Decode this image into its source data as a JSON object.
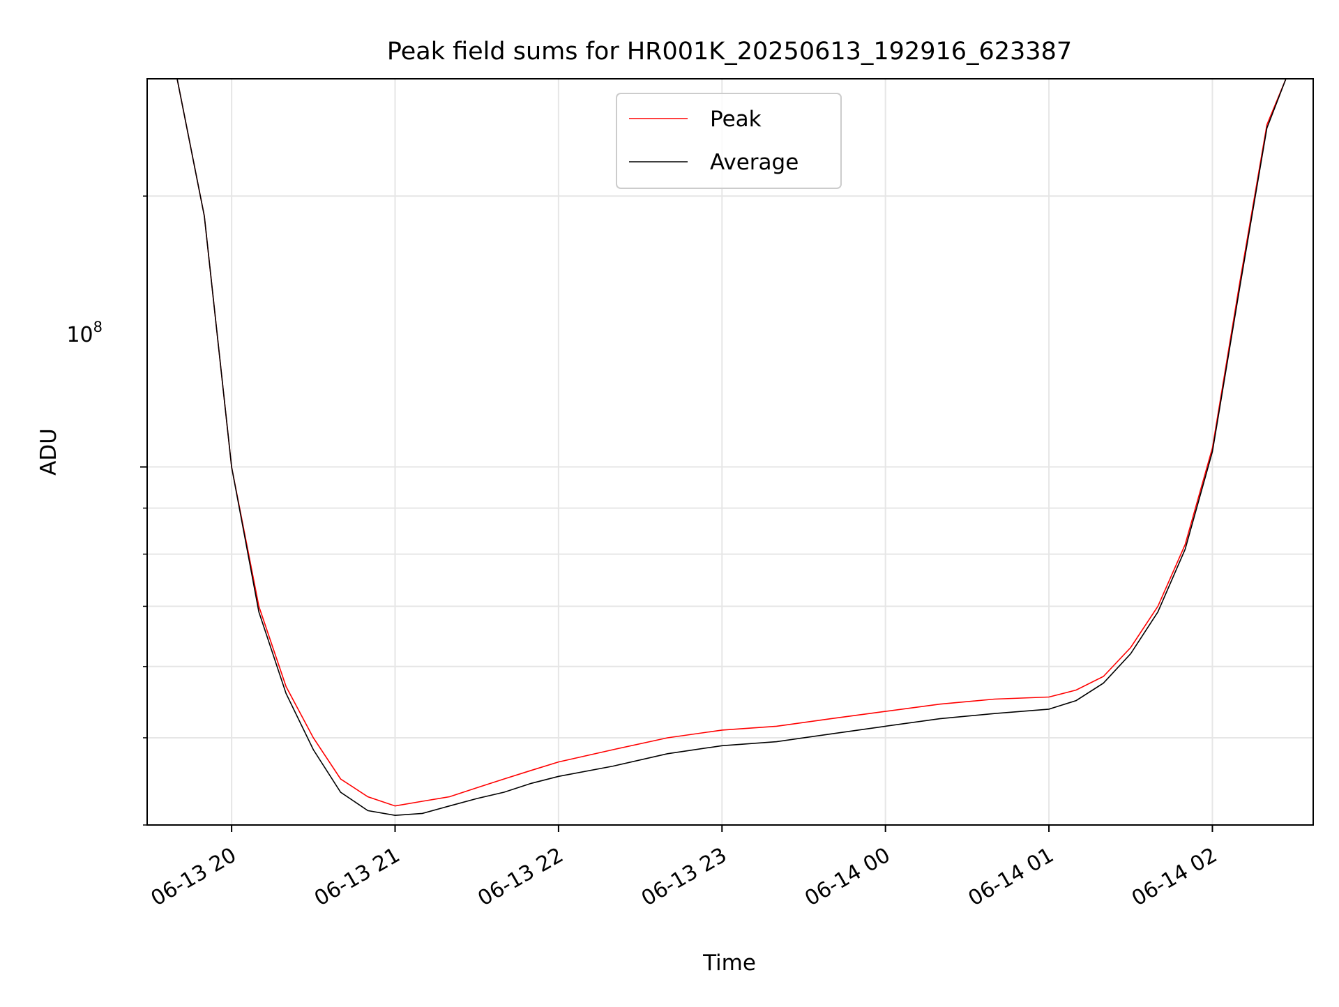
{
  "chart_data": {
    "type": "line",
    "title": "Peak field sums for HR001K_20250613_192916_623387",
    "xlabel": "Time",
    "ylabel": "ADU",
    "y_scale": "log",
    "y_tick_label": "10^8",
    "y_tick_label_base": "10",
    "y_tick_label_exp": "8",
    "ylim": [
      40000000,
      270000000
    ],
    "xlim": [
      "2025-06-13 19:29",
      "2025-06-14 02:37"
    ],
    "x_tick_labels": [
      "06-13 20",
      "06-13 21",
      "06-13 22",
      "06-13 23",
      "06-14 00",
      "06-14 01",
      "06-14 02"
    ],
    "x_ticks": [
      "2025-06-13 20:00",
      "2025-06-13 21:00",
      "2025-06-13 22:00",
      "2025-06-13 23:00",
      "2025-06-14 00:00",
      "2025-06-14 01:00",
      "2025-06-14 02:00"
    ],
    "grid": true,
    "legend_position": "upper center",
    "series": [
      {
        "name": "Peak",
        "color": "#ff0000",
        "x": [
          "2025-06-13 19:29",
          "2025-06-13 19:40",
          "2025-06-13 19:50",
          "2025-06-13 20:00",
          "2025-06-13 20:10",
          "2025-06-13 20:20",
          "2025-06-13 20:30",
          "2025-06-13 20:40",
          "2025-06-13 20:50",
          "2025-06-13 21:00",
          "2025-06-13 21:10",
          "2025-06-13 21:20",
          "2025-06-13 21:30",
          "2025-06-13 21:40",
          "2025-06-13 21:50",
          "2025-06-13 22:00",
          "2025-06-13 22:20",
          "2025-06-13 22:40",
          "2025-06-13 23:00",
          "2025-06-13 23:20",
          "2025-06-13 23:40",
          "2025-06-14 00:00",
          "2025-06-14 00:20",
          "2025-06-14 00:40",
          "2025-06-14 01:00",
          "2025-06-14 01:10",
          "2025-06-14 01:20",
          "2025-06-14 01:30",
          "2025-06-14 01:40",
          "2025-06-14 01:50",
          "2025-06-14 02:00",
          "2025-06-14 02:10",
          "2025-06-14 02:20",
          "2025-06-14 02:27"
        ],
        "y": [
          270000000,
          270000000,
          190000000,
          100000000,
          70000000,
          57000000,
          50000000,
          45000000,
          43000000,
          42000000,
          42500000,
          43000000,
          44000000,
          45000000,
          46000000,
          47000000,
          48500000,
          50000000,
          51000000,
          51500000,
          52500000,
          53500000,
          54500000,
          55200000,
          55500000,
          56500000,
          58500000,
          63000000,
          70000000,
          82000000,
          105000000,
          160000000,
          240000000,
          270000000
        ]
      },
      {
        "name": "Average",
        "color": "#000000",
        "x": [
          "2025-06-13 19:29",
          "2025-06-13 19:40",
          "2025-06-13 19:50",
          "2025-06-13 20:00",
          "2025-06-13 20:10",
          "2025-06-13 20:20",
          "2025-06-13 20:30",
          "2025-06-13 20:40",
          "2025-06-13 20:50",
          "2025-06-13 21:00",
          "2025-06-13 21:10",
          "2025-06-13 21:20",
          "2025-06-13 21:30",
          "2025-06-13 21:40",
          "2025-06-13 21:50",
          "2025-06-13 22:00",
          "2025-06-13 22:20",
          "2025-06-13 22:40",
          "2025-06-13 23:00",
          "2025-06-13 23:20",
          "2025-06-13 23:40",
          "2025-06-14 00:00",
          "2025-06-14 00:20",
          "2025-06-14 00:40",
          "2025-06-14 01:00",
          "2025-06-14 01:10",
          "2025-06-14 01:20",
          "2025-06-14 01:30",
          "2025-06-14 01:40",
          "2025-06-14 01:50",
          "2025-06-14 02:00",
          "2025-06-14 02:10",
          "2025-06-14 02:20",
          "2025-06-14 02:27"
        ],
        "y": [
          270000000,
          270000000,
          190000000,
          100000000,
          69000000,
          56000000,
          48500000,
          43500000,
          41500000,
          41000000,
          41200000,
          42000000,
          42800000,
          43500000,
          44500000,
          45300000,
          46500000,
          48000000,
          49000000,
          49500000,
          50500000,
          51500000,
          52500000,
          53200000,
          53800000,
          55000000,
          57500000,
          62000000,
          69000000,
          81000000,
          104000000,
          158000000,
          238000000,
          270000000
        ]
      }
    ]
  }
}
